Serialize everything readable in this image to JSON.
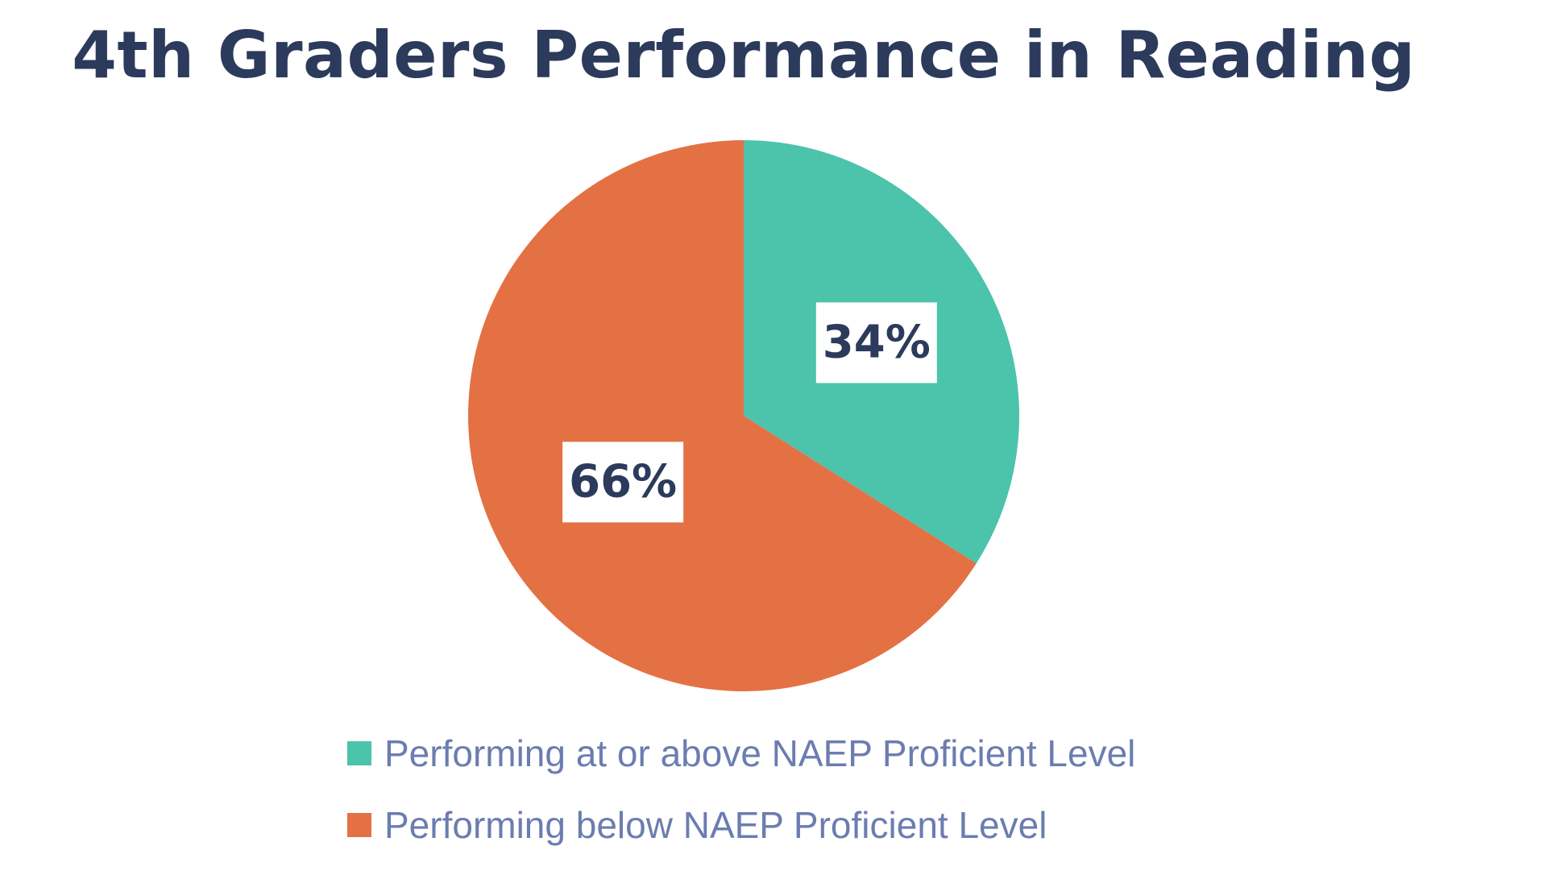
{
  "chart_data": {
    "type": "pie",
    "title": "4th Graders Performance in Reading",
    "categories": [
      "Performing at or above NAEP Proficient Level",
      "Performing below NAEP Proficient Level"
    ],
    "values": [
      34,
      66
    ],
    "data_labels": [
      "34%",
      "66%"
    ],
    "colors": [
      "#4cc3ab",
      "#e47144"
    ],
    "legend_position": "bottom",
    "label_color": "#2c3a5c",
    "title_color": "#2c3a5c",
    "legend_text_color": "#6b7db0"
  }
}
